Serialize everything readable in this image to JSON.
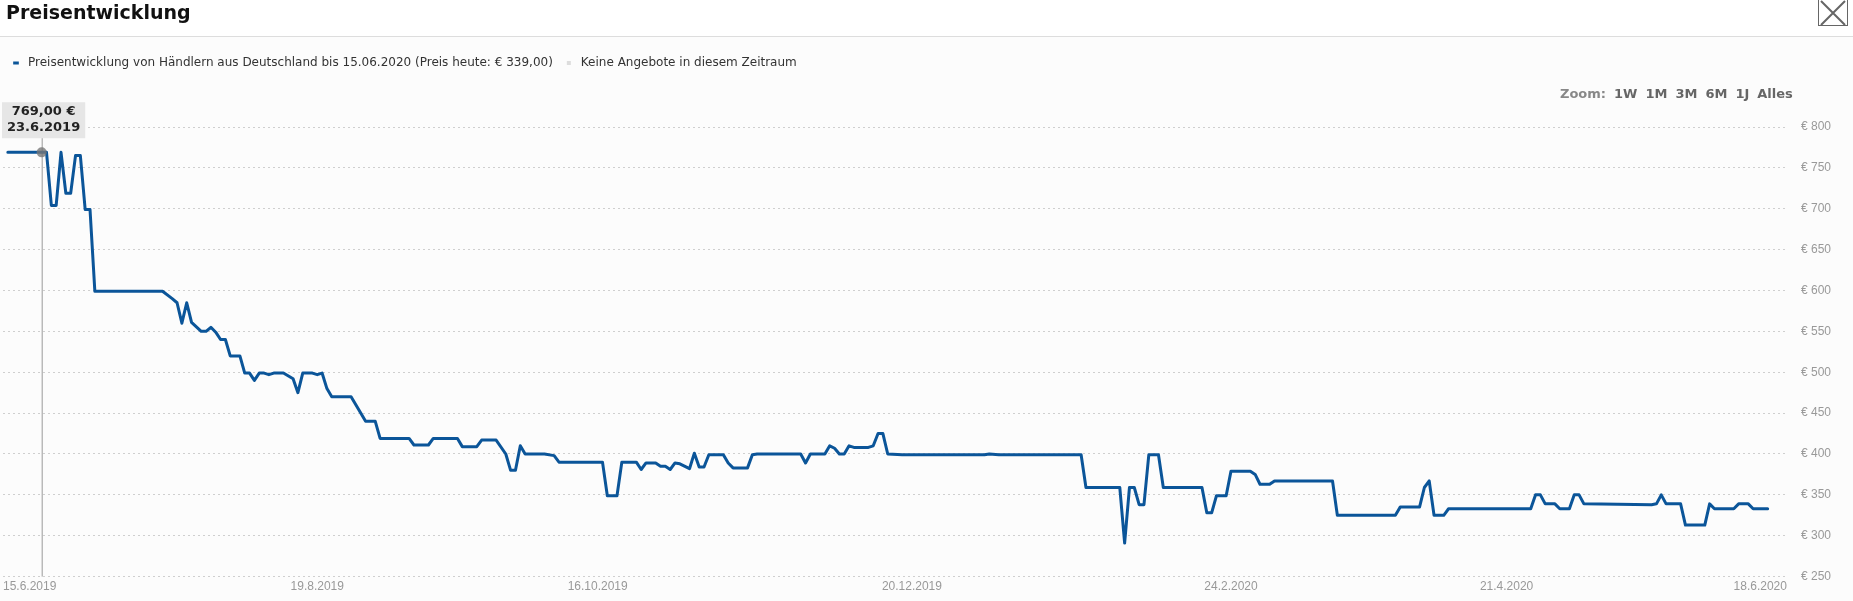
{
  "chart_data": {
    "type": "line",
    "title": "Preisentwicklung",
    "annotations": [
      {
        "text": "769,00 €\n23.6.2019",
        "x": "2019-06-23",
        "y": 769
      },
      "Zoom:",
      "1W",
      "1M",
      "3M",
      "6M",
      "1J",
      "Alles"
    ],
    "x": [
      "2019-06-16",
      "2019-06-24",
      "2019-06-25",
      "2019-06-26",
      "2019-06-27",
      "2019-06-28",
      "2019-06-29",
      "2019-06-30",
      "2019-07-01",
      "2019-07-02",
      "2019-07-03",
      "2019-07-04",
      "2019-07-18",
      "2019-07-20",
      "2019-07-21",
      "2019-07-22",
      "2019-07-23",
      "2019-07-24",
      "2019-07-26",
      "2019-07-27",
      "2019-07-28",
      "2019-07-29",
      "2019-07-30",
      "2019-07-31",
      "2019-08-01",
      "2019-08-03",
      "2019-08-04",
      "2019-08-05",
      "2019-08-06",
      "2019-08-07",
      "2019-08-08",
      "2019-08-09",
      "2019-08-10",
      "2019-08-12",
      "2019-08-14",
      "2019-08-15",
      "2019-08-16",
      "2019-08-18",
      "2019-08-19",
      "2019-08-20",
      "2019-08-21",
      "2019-08-22",
      "2019-08-26",
      "2019-08-29",
      "2019-08-31",
      "2019-09-01",
      "2019-09-07",
      "2019-09-08",
      "2019-09-11",
      "2019-09-12",
      "2019-09-17",
      "2019-09-18",
      "2019-09-21",
      "2019-09-22",
      "2019-09-25",
      "2019-09-27",
      "2019-09-28",
      "2019-09-29",
      "2019-09-30",
      "2019-10-01",
      "2019-10-05",
      "2019-10-07",
      "2019-10-08",
      "2019-10-17",
      "2019-10-18",
      "2019-10-20",
      "2019-10-21",
      "2019-10-24",
      "2019-10-25",
      "2019-10-26",
      "2019-10-28",
      "2019-10-29",
      "2019-10-30",
      "2019-10-31",
      "2019-11-01",
      "2019-11-02",
      "2019-11-04",
      "2019-11-05",
      "2019-11-06",
      "2019-11-07",
      "2019-11-08",
      "2019-11-11",
      "2019-11-12",
      "2019-11-13",
      "2019-11-16",
      "2019-11-17",
      "2019-11-18",
      "2019-11-27",
      "2019-11-28",
      "2019-11-29",
      "2019-12-02",
      "2019-12-03",
      "2019-12-04",
      "2019-12-05",
      "2019-12-06",
      "2019-12-07",
      "2019-12-08",
      "2019-12-11",
      "2019-12-12",
      "2019-12-13",
      "2019-12-14",
      "2019-12-15",
      "2019-12-18",
      "2020-01-04",
      "2020-01-05",
      "2020-01-07",
      "2020-01-24",
      "2020-01-25",
      "2020-02-01",
      "2020-02-02",
      "2020-02-03",
      "2020-02-04",
      "2020-02-05",
      "2020-02-06",
      "2020-02-07",
      "2020-02-09",
      "2020-02-10",
      "2020-02-18",
      "2020-02-19",
      "2020-02-20",
      "2020-02-21",
      "2020-02-23",
      "2020-02-24",
      "2020-02-28",
      "2020-02-29",
      "2020-03-01",
      "2020-03-03",
      "2020-03-04",
      "2020-03-16",
      "2020-03-17",
      "2020-03-29",
      "2020-03-30",
      "2020-04-03",
      "2020-04-04",
      "2020-04-05",
      "2020-04-06",
      "2020-04-08",
      "2020-04-09",
      "2020-04-26",
      "2020-04-27",
      "2020-04-28",
      "2020-04-29",
      "2020-05-01",
      "2020-05-02",
      "2020-05-04",
      "2020-05-05",
      "2020-05-06",
      "2020-05-07",
      "2020-05-21",
      "2020-05-22",
      "2020-05-23",
      "2020-05-24",
      "2020-05-27",
      "2020-05-28",
      "2020-06-01",
      "2020-06-02",
      "2020-06-03",
      "2020-06-07",
      "2020-06-08",
      "2020-06-10",
      "2020-06-11",
      "2020-06-14"
    ],
    "series": [
      {
        "name": "Preisentwicklung von Händlern aus Deutschland bis 15.06.2020 (Preis heute: € 339,00)",
        "color": "#0b5599",
        "values": [
          769,
          769,
          704,
          704,
          769,
          719,
          719,
          765,
          765,
          699,
          699,
          599,
          599,
          590,
          585,
          560,
          585,
          561,
          550,
          550,
          555,
          549,
          540,
          540,
          520,
          520,
          499,
          499,
          490,
          499,
          499,
          497,
          499,
          499,
          492,
          475,
          499,
          499,
          497,
          499,
          480,
          470,
          470,
          440,
          440,
          419,
          419,
          411,
          411,
          419,
          419,
          409,
          409,
          417,
          417,
          400,
          380,
          380,
          410,
          400,
          400,
          398,
          390,
          390,
          349,
          349,
          390,
          390,
          381,
          389,
          389,
          385,
          385,
          381,
          389,
          388,
          382,
          401,
          384,
          384,
          399,
          399,
          389,
          383,
          383,
          399,
          400,
          400,
          389,
          400,
          400,
          410,
          407,
          400,
          400,
          410,
          408,
          408,
          410,
          425,
          425,
          400,
          399,
          399,
          400,
          399,
          399,
          359,
          359,
          291,
          359,
          359,
          338,
          338,
          399,
          399,
          359,
          359,
          328,
          328,
          349,
          349,
          379,
          379,
          375,
          363,
          363,
          367,
          367,
          325,
          325,
          335,
          335,
          359,
          367,
          325,
          325,
          333,
          333,
          350,
          350,
          339,
          339,
          333,
          333,
          350,
          350,
          339,
          338,
          339,
          350,
          339,
          339,
          313,
          313,
          339,
          333,
          333,
          339,
          339,
          333,
          333
        ]
      },
      {
        "name": "Keine Angebote in diesem Zeitraum",
        "type": "area",
        "color": "#dddddd",
        "values": [
          null,
          null,
          null,
          null,
          null,
          null,
          null,
          null,
          null,
          null,
          null,
          null,
          null,
          null,
          null,
          null,
          null,
          null,
          null,
          null,
          null,
          null,
          null,
          null,
          null,
          null,
          null,
          null,
          null,
          null,
          null,
          null,
          null,
          null,
          null,
          null,
          null,
          null,
          null,
          null,
          null,
          null,
          null,
          null,
          null,
          null,
          null,
          null,
          null,
          null,
          null,
          null,
          null,
          null,
          null,
          null,
          null,
          null,
          null,
          null,
          null,
          null,
          null,
          null,
          null,
          null,
          null,
          null,
          null,
          null,
          null,
          null,
          null,
          null,
          null,
          null,
          null,
          null,
          null,
          null,
          null,
          null,
          null,
          null,
          null,
          null,
          null,
          null,
          null,
          null,
          null,
          null,
          null,
          null,
          null,
          null,
          null,
          null,
          null,
          null,
          null,
          null,
          null,
          null,
          null,
          null,
          null,
          null,
          null,
          null,
          null,
          null,
          null,
          null,
          null,
          null,
          null,
          null,
          null,
          null,
          null,
          null,
          null,
          null,
          null,
          null,
          null,
          null,
          null,
          null,
          null,
          null,
          null,
          null,
          null,
          null,
          null,
          null,
          null,
          null,
          null,
          null,
          null,
          null,
          null,
          null,
          null,
          null,
          null,
          null,
          null,
          null,
          null,
          null,
          null,
          null,
          null,
          null,
          null,
          null,
          null,
          null
        ]
      }
    ],
    "ref_lines": [
      {
        "axis": "x",
        "value": "2019-06-23",
        "color": "#999999"
      }
    ],
    "xlim": [
      "2019-06-15",
      "2020-06-18"
    ],
    "xticks": [
      {
        "value": "2019-06-15",
        "label": "15.6.2019"
      },
      {
        "value": "2019-08-19",
        "label": "19.8.2019"
      },
      {
        "value": "2019-10-16",
        "label": "16.10.2019"
      },
      {
        "value": "2019-12-20",
        "label": "20.12.2019"
      },
      {
        "value": "2020-02-24",
        "label": "24.2.2020"
      },
      {
        "value": "2020-04-21",
        "label": "21.4.2020"
      },
      {
        "value": "2020-06-18",
        "label": "18.6.2020"
      }
    ],
    "ylim": [
      250,
      800
    ],
    "yticks": [
      {
        "value": 250,
        "label": "€ 250"
      },
      {
        "value": 300,
        "label": "€ 300"
      },
      {
        "value": 350,
        "label": "€ 350"
      },
      {
        "value": 400,
        "label": "€ 400"
      },
      {
        "value": 450,
        "label": "€ 450"
      },
      {
        "value": 500,
        "label": "€ 500"
      },
      {
        "value": 550,
        "label": "€ 550"
      },
      {
        "value": 600,
        "label": "€ 600"
      },
      {
        "value": 650,
        "label": "€ 650"
      },
      {
        "value": 700,
        "label": "€ 700"
      },
      {
        "value": 750,
        "label": "€ 750"
      },
      {
        "value": 800,
        "label": "€ 800"
      }
    ],
    "grid": "y",
    "legend": "top left",
    "marker": "none",
    "line_style": "solid"
  }
}
